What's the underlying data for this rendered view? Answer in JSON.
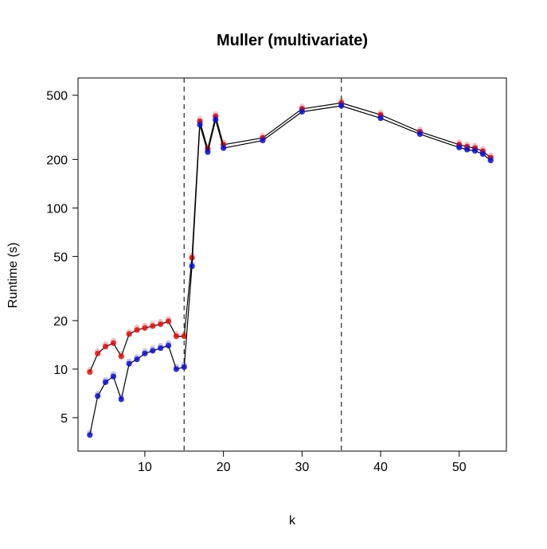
{
  "chart_data": {
    "type": "line",
    "title": "Muller (multivariate)",
    "xlabel": "k",
    "ylabel": "Runtime (s)",
    "y_scale": "log",
    "xlim": [
      1.5,
      56
    ],
    "ylim": [
      3.1,
      640
    ],
    "x_ticks": [
      10,
      20,
      30,
      40,
      50
    ],
    "y_ticks": [
      5,
      10,
      20,
      50,
      100,
      200,
      500
    ],
    "vlines": [
      15,
      35
    ],
    "grid": false,
    "legend": "none",
    "x": [
      3,
      4,
      5,
      6,
      7,
      8,
      9,
      10,
      11,
      12,
      13,
      14,
      15,
      16,
      17,
      18,
      19,
      20,
      25,
      30,
      35,
      40,
      45,
      50,
      51,
      52,
      53,
      54
    ],
    "series": [
      {
        "color": "#DD1111",
        "values": [
          9.6,
          12.5,
          13.8,
          14.5,
          12.0,
          16.5,
          17.5,
          18.0,
          18.5,
          19.0,
          19.8,
          16.0,
          16.0,
          49.0,
          345,
          232,
          370,
          247,
          272,
          412,
          448,
          378,
          297,
          247,
          240,
          235,
          225,
          205
        ]
      },
      {
        "color": "#1111CC",
        "values": [
          3.9,
          6.8,
          8.3,
          9.0,
          6.5,
          10.8,
          11.5,
          12.5,
          13.0,
          13.5,
          14.0,
          10.0,
          10.3,
          43.5,
          328,
          222,
          352,
          235,
          262,
          395,
          430,
          360,
          287,
          237,
          230,
          226,
          216,
          197
        ]
      }
    ]
  }
}
